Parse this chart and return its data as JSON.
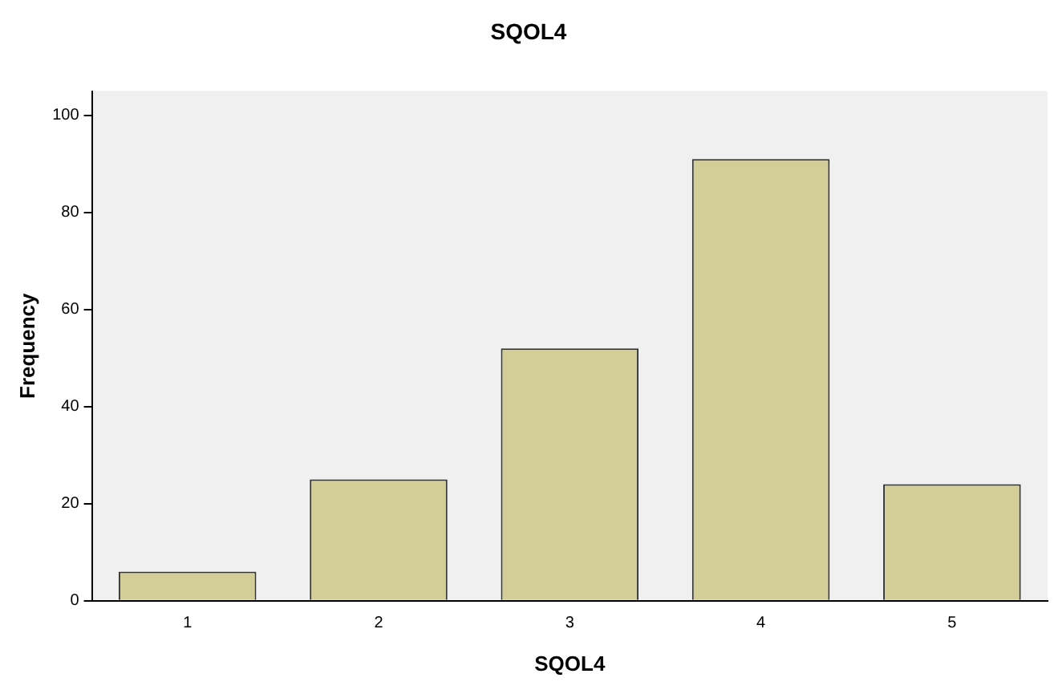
{
  "chart_data": {
    "type": "bar",
    "title": "SQOL4",
    "xlabel": "SQOL4",
    "ylabel": "Frequency",
    "categories": [
      "1",
      "2",
      "3",
      "4",
      "5"
    ],
    "values": [
      6,
      25,
      52,
      91,
      24
    ],
    "color": "#d3ce97",
    "ylim": [
      0,
      105
    ],
    "yticks": [
      0,
      20,
      40,
      60,
      80,
      100
    ],
    "grid": false,
    "legend": false
  }
}
